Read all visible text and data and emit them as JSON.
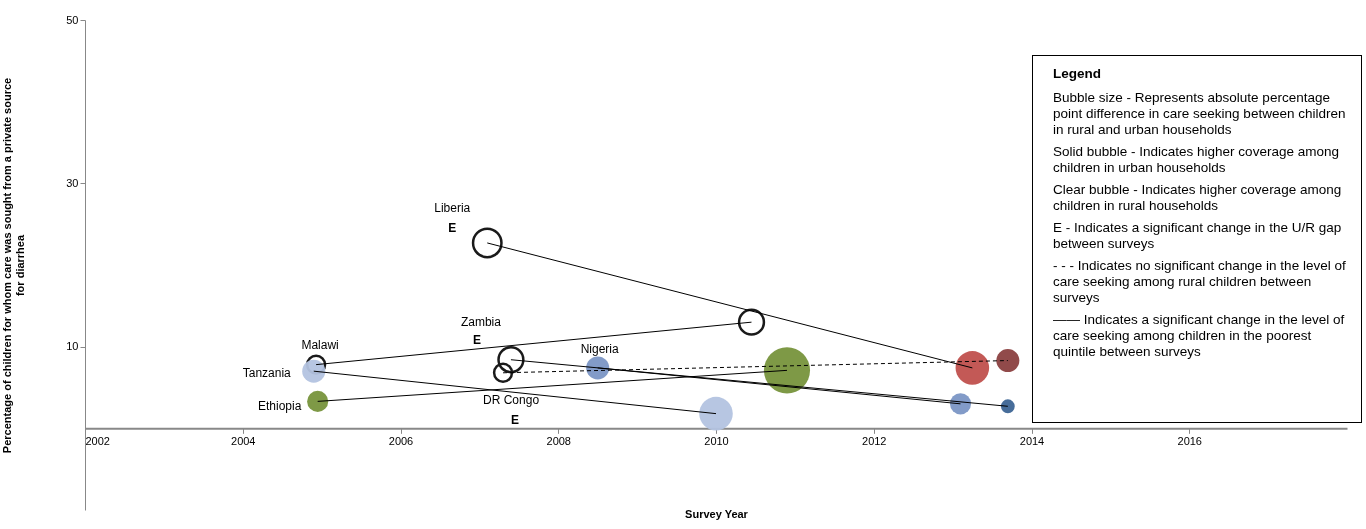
{
  "chart_data": {
    "type": "bubble",
    "xlabel": "Survey Year",
    "ylabel": "Percentage of children for whom care was sought  from a private source for diarrhea",
    "legend_title": "Legend",
    "xlim": [
      2002,
      2018
    ],
    "xticks": [
      2002,
      2004,
      2006,
      2008,
      2010,
      2012,
      2014,
      2016
    ],
    "ylim": [
      -10,
      50
    ],
    "yticks": [
      10,
      30,
      50
    ],
    "grid": false,
    "series": [
      {
        "type": "line",
        "color": "#000000",
        "line_style": "solid",
        "x": [
          2007.1,
          2013.25
        ],
        "values": [
          22.7,
          7.4
        ]
      },
      {
        "type": "line",
        "color": "#000000",
        "line_style": "solid",
        "x": [
          2004.93,
          2010.45
        ],
        "values": [
          7.8,
          13.0
        ]
      },
      {
        "type": "line",
        "color": "#000000",
        "line_style": "solid",
        "x": [
          2007.4,
          2013.7
        ],
        "values": [
          8.4,
          2.7
        ]
      },
      {
        "type": "line",
        "color": "#000000",
        "line_style": "solid",
        "x": [
          2004.9,
          2010.0
        ],
        "values": [
          7.0,
          1.8
        ]
      },
      {
        "type": "line",
        "color": "#000000",
        "line_style": "solid",
        "x": [
          2004.95,
          2010.9
        ],
        "values": [
          3.3,
          7.1
        ]
      },
      {
        "type": "line",
        "color": "#000000",
        "line_style": "dashed",
        "x": [
          2007.3,
          2013.7
        ],
        "values": [
          6.8,
          8.3
        ]
      },
      {
        "type": "line",
        "color": "#000000",
        "line_style": "solid",
        "x": [
          2008.5,
          2013.1
        ],
        "values": [
          7.4,
          3.0
        ]
      },
      {
        "name": "Liberia",
        "color": "#1a1a1a",
        "x": [
          2007.1,
          2013.25
        ],
        "values": [
          22.7,
          7.4
        ],
        "sizes": [
          0.38,
          0.53
        ],
        "colors": [
          null,
          "#c0504d"
        ]
      },
      {
        "name": "Malawi",
        "color": "#1a1a1a",
        "x": [
          2004.93,
          2010.45
        ],
        "values": [
          7.8,
          13.0
        ],
        "sizes": [
          0.15,
          0.29
        ],
        "colors": [
          null,
          null
        ]
      },
      {
        "name": "Zambia",
        "color": "#1a1a1a",
        "x": [
          2007.4,
          2013.7
        ],
        "values": [
          8.4,
          2.7
        ],
        "sizes": [
          0.29,
          0.09
        ],
        "colors": [
          null,
          "#3d6595"
        ]
      },
      {
        "name": "Tanzania",
        "x": [
          2004.9,
          2010.0
        ],
        "values": [
          7.0,
          1.8
        ],
        "sizes": [
          0.25,
          0.53
        ],
        "colors": [
          "#b3c3e0",
          "#b3c3e0"
        ]
      },
      {
        "name": "Ethiopia",
        "x": [
          2004.95,
          2010.9
        ],
        "values": [
          3.3,
          7.1
        ],
        "sizes": [
          0.21,
          1
        ],
        "colors": [
          "#77933c",
          "#77933c"
        ]
      },
      {
        "name": "DR Congo",
        "color": "#1a1a1a",
        "x": [
          2007.3,
          2013.7
        ],
        "values": [
          6.8,
          8.3
        ],
        "sizes": [
          0.15,
          0.25
        ],
        "colors": [
          null,
          "#8b4040"
        ]
      },
      {
        "name": "Nigeria",
        "x": [
          2008.5,
          2013.1
        ],
        "values": [
          7.4,
          3.0
        ],
        "sizes": [
          0.25,
          0.21
        ],
        "colors": [
          "#7b96c5",
          "#7b96c5"
        ]
      }
    ],
    "annotations": [
      {
        "text": "E",
        "x": 2007.1,
        "y": 22.7
      },
      {
        "text": "E",
        "x": 2007.4,
        "y": 8.4
      },
      "E",
      "Bubble size - Represents absolute percentage point difference in care seeking between children in rural and urban households",
      "Solid bubble - Indicates higher coverage among children in urban households",
      "Clear bubble - Indicates higher coverage among children in rural households",
      "E - Indicates a significant change in the U/R gap between surveys",
      "- - -  Indicates no significant change in the level of care seeking among rural children between surveys",
      "—— Indicates a significant change in the level of care seeking among children in the poorest quintile between surveys"
    ]
  }
}
